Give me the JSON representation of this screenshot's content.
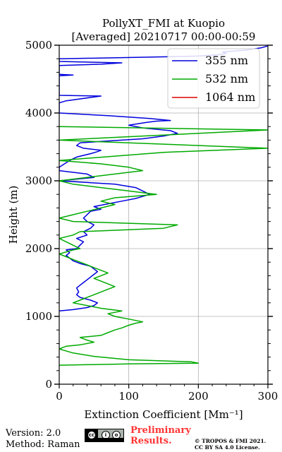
{
  "chart_data": {
    "type": "line",
    "title": [
      "PollyXT_FMI at Kuopio",
      "[Averaged] 20210717 00:00-00:59"
    ],
    "xlabel": "Extinction Coefficient [Mm⁻¹]",
    "ylabel": "Height (m)",
    "xlim": [
      0,
      300
    ],
    "ylim": [
      0,
      5000
    ],
    "x_ticks": [
      "0",
      "100",
      "200",
      "300"
    ],
    "y_ticks": [
      "0",
      "1000",
      "2000",
      "3000",
      "4000",
      "5000"
    ],
    "grid": true,
    "legend_position": "top-right",
    "series": [
      {
        "name": "355 nm",
        "color": "#0000dd",
        "points": [
          [
            0,
            1080
          ],
          [
            20,
            1100
          ],
          [
            40,
            1130
          ],
          [
            50,
            1160
          ],
          [
            55,
            1200
          ],
          [
            45,
            1240
          ],
          [
            30,
            1280
          ],
          [
            25,
            1320
          ],
          [
            28,
            1360
          ],
          [
            25,
            1420
          ],
          [
            30,
            1460
          ],
          [
            35,
            1500
          ],
          [
            40,
            1540
          ],
          [
            45,
            1580
          ],
          [
            50,
            1620
          ],
          [
            55,
            1660
          ],
          [
            50,
            1700
          ],
          [
            45,
            1740
          ],
          [
            30,
            1780
          ],
          [
            20,
            1820
          ],
          [
            15,
            1860
          ],
          [
            10,
            1900
          ],
          [
            15,
            1940
          ],
          [
            10,
            1980
          ],
          [
            25,
            2000
          ],
          [
            30,
            2050
          ],
          [
            35,
            2100
          ],
          [
            25,
            2150
          ],
          [
            40,
            2200
          ],
          [
            35,
            2250
          ],
          [
            45,
            2300
          ],
          [
            50,
            2350
          ],
          [
            40,
            2400
          ],
          [
            35,
            2450
          ],
          [
            40,
            2500
          ],
          [
            45,
            2550
          ],
          [
            60,
            2580
          ],
          [
            50,
            2620
          ],
          [
            70,
            2660
          ],
          [
            90,
            2700
          ],
          [
            110,
            2740
          ],
          [
            130,
            2800
          ],
          [
            120,
            2850
          ],
          [
            110,
            2900
          ],
          [
            80,
            2950
          ],
          [
            0,
            3000
          ],
          [
            50,
            3050
          ],
          [
            40,
            3100
          ],
          [
            0,
            3150
          ],
          [
            0,
            3200
          ],
          [
            15,
            3300
          ],
          [
            25,
            3350
          ],
          [
            45,
            3400
          ],
          [
            55,
            3430
          ],
          [
            60,
            3450
          ],
          [
            35,
            3480
          ],
          [
            25,
            3520
          ],
          [
            30,
            3560
          ],
          [
            60,
            3580
          ],
          [
            90,
            3600
          ],
          [
            120,
            3620
          ],
          [
            150,
            3660
          ],
          [
            170,
            3700
          ],
          [
            160,
            3740
          ],
          [
            120,
            3780
          ],
          [
            100,
            3820
          ],
          [
            125,
            3860
          ],
          [
            140,
            3880
          ],
          [
            160,
            3890
          ],
          [
            130,
            3920
          ],
          [
            70,
            3960
          ],
          [
            0,
            4000
          ],
          [
            0,
            4150
          ],
          [
            10,
            4180
          ],
          [
            60,
            4250
          ],
          [
            0,
            4260
          ],
          [
            0,
            4550
          ],
          [
            20,
            4560
          ],
          [
            0,
            4570
          ],
          [
            0,
            4700
          ],
          [
            60,
            4720
          ],
          [
            90,
            4740
          ],
          [
            0,
            4760
          ],
          [
            0,
            4800
          ],
          [
            110,
            4820
          ],
          [
            200,
            4840
          ],
          [
            230,
            4860
          ],
          [
            240,
            4880
          ],
          [
            235,
            4900
          ],
          [
            270,
            4930
          ],
          [
            290,
            4960
          ],
          [
            300,
            4990
          ]
        ]
      },
      {
        "name": "532 nm",
        "color": "#00aa00",
        "points": [
          [
            0,
            280
          ],
          [
            50,
            290
          ],
          [
            100,
            300
          ],
          [
            200,
            310
          ],
          [
            190,
            330
          ],
          [
            100,
            360
          ],
          [
            50,
            410
          ],
          [
            20,
            460
          ],
          [
            0,
            520
          ],
          [
            10,
            560
          ],
          [
            30,
            580
          ],
          [
            50,
            620
          ],
          [
            40,
            650
          ],
          [
            30,
            690
          ],
          [
            60,
            720
          ],
          [
            70,
            760
          ],
          [
            80,
            800
          ],
          [
            90,
            830
          ],
          [
            100,
            870
          ],
          [
            110,
            900
          ],
          [
            120,
            920
          ],
          [
            100,
            960
          ],
          [
            80,
            1000
          ],
          [
            70,
            1040
          ],
          [
            90,
            1080
          ],
          [
            60,
            1120
          ],
          [
            40,
            1160
          ],
          [
            20,
            1200
          ],
          [
            30,
            1240
          ],
          [
            40,
            1280
          ],
          [
            50,
            1320
          ],
          [
            60,
            1360
          ],
          [
            70,
            1400
          ],
          [
            80,
            1440
          ],
          [
            70,
            1480
          ],
          [
            60,
            1520
          ],
          [
            50,
            1560
          ],
          [
            60,
            1600
          ],
          [
            70,
            1640
          ],
          [
            60,
            1680
          ],
          [
            50,
            1720
          ],
          [
            40,
            1760
          ],
          [
            30,
            1800
          ],
          [
            20,
            1840
          ],
          [
            10,
            1880
          ],
          [
            0,
            1920
          ],
          [
            20,
            1980
          ],
          [
            30,
            2000
          ],
          [
            20,
            2050
          ],
          [
            10,
            2100
          ],
          [
            0,
            2150
          ],
          [
            20,
            2200
          ],
          [
            30,
            2250
          ],
          [
            150,
            2300
          ],
          [
            170,
            2350
          ],
          [
            20,
            2400
          ],
          [
            0,
            2450
          ],
          [
            20,
            2500
          ],
          [
            40,
            2550
          ],
          [
            60,
            2600
          ],
          [
            80,
            2650
          ],
          [
            60,
            2700
          ],
          [
            80,
            2750
          ],
          [
            140,
            2800
          ],
          [
            100,
            2850
          ],
          [
            60,
            2900
          ],
          [
            20,
            2950
          ],
          [
            0,
            3000
          ],
          [
            40,
            3050
          ],
          [
            80,
            3100
          ],
          [
            120,
            3150
          ],
          [
            100,
            3200
          ],
          [
            60,
            3250
          ],
          [
            0,
            3300
          ],
          [
            150,
            3420
          ],
          [
            300,
            3480
          ],
          [
            0,
            3600
          ],
          [
            300,
            3750
          ],
          [
            0,
            3800
          ]
        ]
      },
      {
        "name": "1064 nm",
        "color": "#dd0000",
        "points": []
      }
    ]
  },
  "footer": {
    "version": "Version: 2.0",
    "method": "Method: Raman",
    "preliminary": [
      "Preliminary",
      "Results."
    ],
    "copyright": [
      "© TROPOS & FMI 2021.",
      "CC BY SA 4.0 License."
    ]
  }
}
